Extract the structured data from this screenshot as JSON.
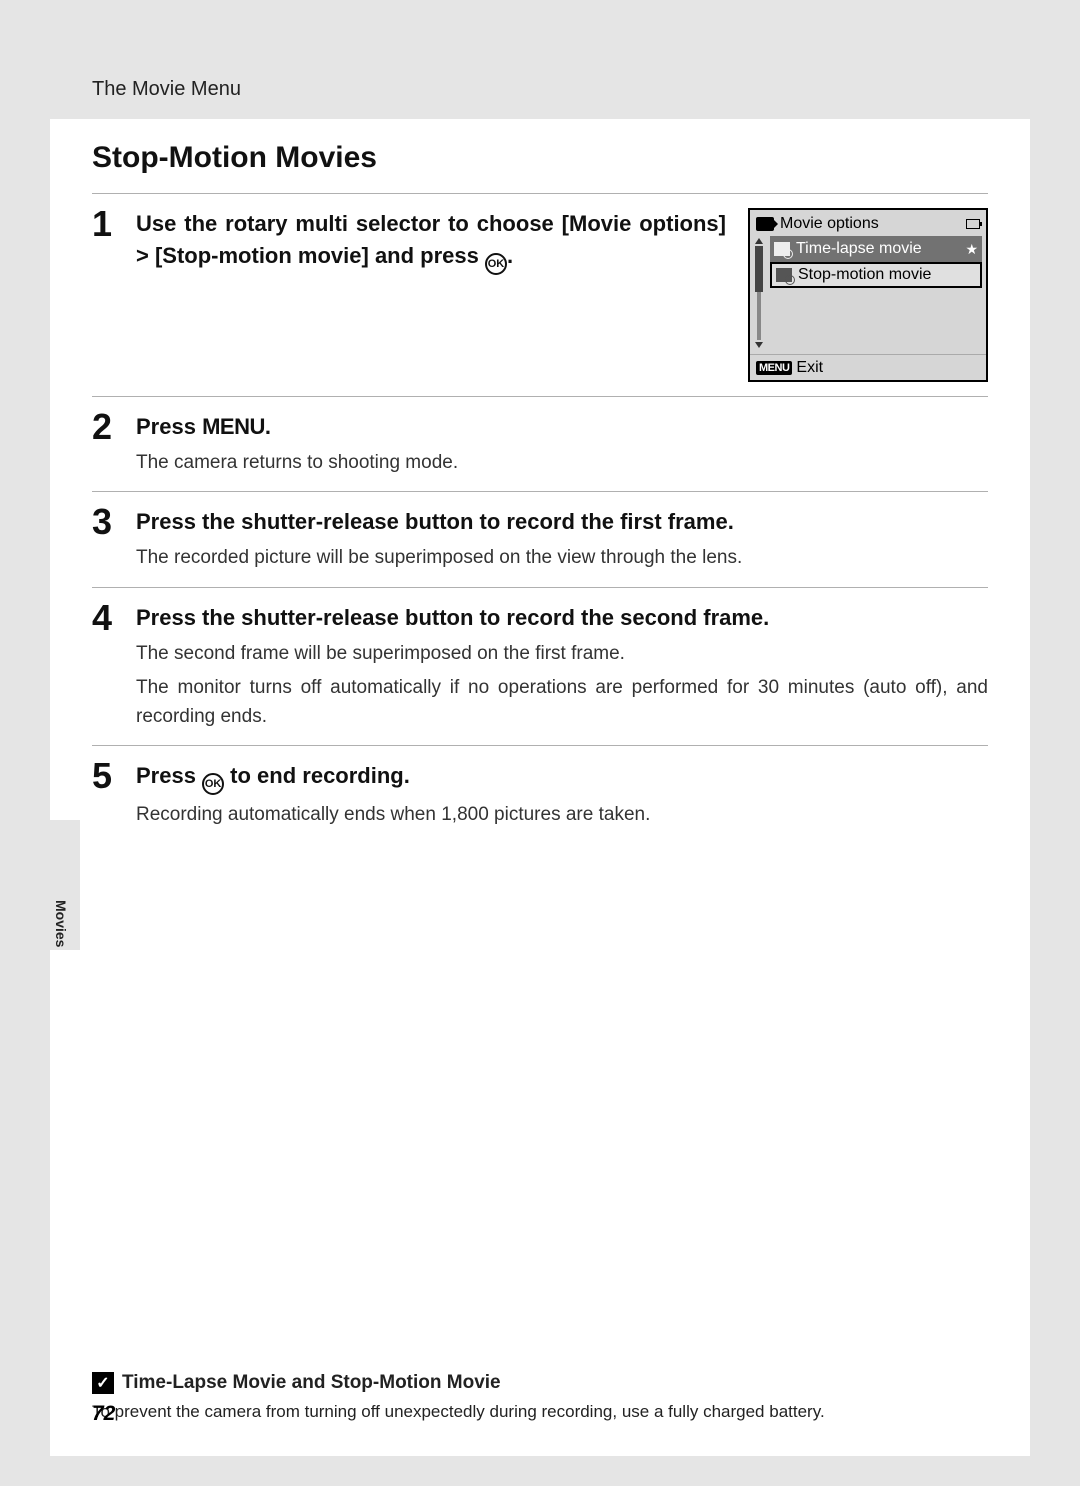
{
  "header": {
    "breadcrumb": "The Movie Menu"
  },
  "title": "Stop-Motion Movies",
  "screen": {
    "title": "Movie options",
    "item_highlight": "Time-lapse movie",
    "star": "★",
    "item_boxed": "Stop-motion movie",
    "exit_chip": "MENU",
    "exit_label": "Exit"
  },
  "steps": [
    {
      "num": "1",
      "head_pre": "Use the rotary multi selector to choose [Movie options] > [Stop-motion movie] and press ",
      "head_post": "."
    },
    {
      "num": "2",
      "head_pre": "Press ",
      "head_mid": "MENU",
      "head_post": ".",
      "sub1": "The camera returns to shooting mode."
    },
    {
      "num": "3",
      "head": "Press the shutter-release button to record the first frame.",
      "sub1": "The recorded picture will be superimposed on the view through the lens."
    },
    {
      "num": "4",
      "head": "Press the shutter-release button to record the second frame.",
      "sub1": "The second frame will be superimposed on the first frame.",
      "sub2": "The monitor turns off automatically if no operations are performed for 30 minutes (auto off), and recording ends."
    },
    {
      "num": "5",
      "head_pre": "Press ",
      "head_post": " to end recording.",
      "sub1": "Recording automatically ends when 1,800 pictures are taken."
    }
  ],
  "side_label": "Movies",
  "note": {
    "check": "✓",
    "title": "Time-Lapse Movie and Stop-Motion Movie",
    "body": "To prevent the camera from turning off unexpectedly during recording, use a fully charged battery."
  },
  "page_number": "72",
  "ok_glyph": "OK"
}
